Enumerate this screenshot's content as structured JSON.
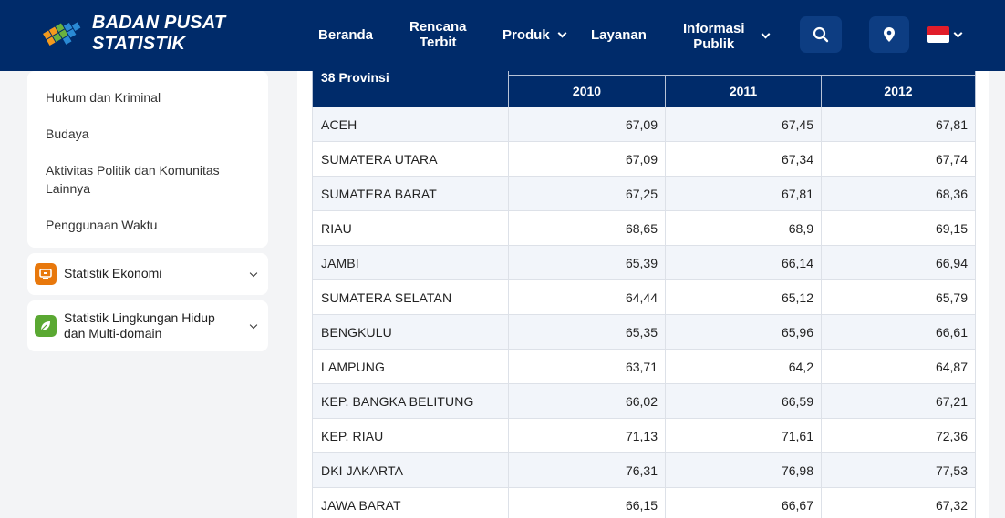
{
  "header": {
    "brand_line1": "BADAN PUSAT",
    "brand_line2": "STATISTIK",
    "nav": {
      "beranda": "Beranda",
      "rencana_line1": "Rencana",
      "rencana_line2": "Terbit",
      "produk": "Produk",
      "layanan": "Layanan",
      "informasi_line1": "Informasi",
      "informasi_line2": "Publik"
    },
    "accent_color": "#002b6a"
  },
  "sidebar": {
    "links": [
      "Hukum dan Kriminal",
      "Budaya",
      "Aktivitas Politik dan Komunitas",
      "Lainnya",
      "Penggunaan Waktu"
    ],
    "categories": [
      {
        "label": "Statistik Ekonomi",
        "icon": "monitor-icon",
        "color": "#e8780c"
      },
      {
        "label_line1": "Statistik Lingkungan Hidup",
        "label_line2": "dan Multi-domain",
        "icon": "leaf-icon",
        "color": "#5aa832"
      }
    ]
  },
  "table": {
    "row_header": "38 Provinsi",
    "years": [
      "2010",
      "2011",
      "2012"
    ],
    "rows": [
      {
        "name": "ACEH",
        "values": [
          "67,09",
          "67,45",
          "67,81"
        ]
      },
      {
        "name": "SUMATERA UTARA",
        "values": [
          "67,09",
          "67,34",
          "67,74"
        ]
      },
      {
        "name": "SUMATERA BARAT",
        "values": [
          "67,25",
          "67,81",
          "68,36"
        ]
      },
      {
        "name": "RIAU",
        "values": [
          "68,65",
          "68,9",
          "69,15"
        ]
      },
      {
        "name": "JAMBI",
        "values": [
          "65,39",
          "66,14",
          "66,94"
        ]
      },
      {
        "name": "SUMATERA SELATAN",
        "values": [
          "64,44",
          "65,12",
          "65,79"
        ]
      },
      {
        "name": "BENGKULU",
        "values": [
          "65,35",
          "65,96",
          "66,61"
        ]
      },
      {
        "name": "LAMPUNG",
        "values": [
          "63,71",
          "64,2",
          "64,87"
        ]
      },
      {
        "name": "KEP. BANGKA BELITUNG",
        "values": [
          "66,02",
          "66,59",
          "67,21"
        ]
      },
      {
        "name": "KEP. RIAU",
        "values": [
          "71,13",
          "71,61",
          "72,36"
        ]
      },
      {
        "name": "DKI JAKARTA",
        "values": [
          "76,31",
          "76,98",
          "77,53"
        ]
      },
      {
        "name": "JAWA BARAT",
        "values": [
          "66,15",
          "66,67",
          "67,32"
        ]
      }
    ]
  }
}
